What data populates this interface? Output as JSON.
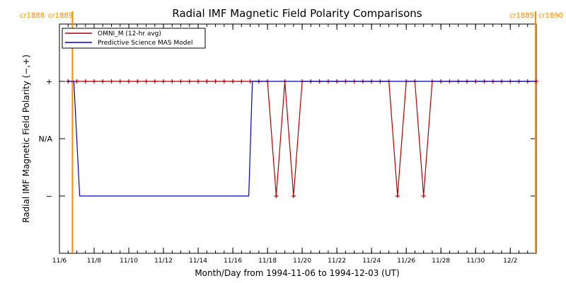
{
  "chart_data": {
    "type": "line",
    "title": "Radial IMF Magnetic Field Polarity Comparisons",
    "xlabel": "Month/Day from 1994-11-06 to 1994-12-03 (UT)",
    "ylabel": "Radial IMF Magnetic Field Polarity (−,+)",
    "x_start": "1994-11-06T00:00",
    "x_end": "1994-12-03T12:00",
    "x_ticks": [
      {
        "date": "1994-11-06",
        "label": "11/6"
      },
      {
        "date": "1994-11-08",
        "label": "11/8"
      },
      {
        "date": "1994-11-10",
        "label": "11/10"
      },
      {
        "date": "1994-11-12",
        "label": "11/12"
      },
      {
        "date": "1994-11-14",
        "label": "11/14"
      },
      {
        "date": "1994-11-16",
        "label": "11/16"
      },
      {
        "date": "1994-11-18",
        "label": "11/18"
      },
      {
        "date": "1994-11-20",
        "label": "11/20"
      },
      {
        "date": "1994-11-22",
        "label": "11/22"
      },
      {
        "date": "1994-11-24",
        "label": "11/24"
      },
      {
        "date": "1994-11-26",
        "label": "11/26"
      },
      {
        "date": "1994-11-28",
        "label": "11/28"
      },
      {
        "date": "1994-11-30",
        "label": "11/30"
      },
      {
        "date": "1994-12-02",
        "label": "12/2"
      }
    ],
    "ylim": [
      -2,
      2
    ],
    "y_ticks": [
      {
        "value": 1,
        "label": "+"
      },
      {
        "value": 0,
        "label": "N/A"
      },
      {
        "value": -1,
        "label": "−"
      }
    ],
    "carrington_markers": [
      {
        "date": "1994-11-06T18:00",
        "labels": [
          "cr1888",
          "cr1889"
        ],
        "color": "#ff8c00"
      },
      {
        "date": "1994-12-03T11:00",
        "labels": [
          "cr1889",
          "cr1890"
        ],
        "color": "#ff8c00"
      }
    ],
    "legend": {
      "placement": "top-left",
      "entries": [
        {
          "name": "OMNI_M (12-hr avg)",
          "color": "#b00000"
        },
        {
          "name": "Predictive Science MAS Model",
          "color": "#0000cc"
        }
      ]
    },
    "series": [
      {
        "name": "OMNI_M (12-hr avg)",
        "color": "#b00000",
        "marker": "plus",
        "points": [
          [
            "1994-11-06T12:00",
            1
          ],
          [
            "1994-11-07T00:00",
            1
          ],
          [
            "1994-11-07T12:00",
            1
          ],
          [
            "1994-11-08T00:00",
            1
          ],
          [
            "1994-11-08T12:00",
            1
          ],
          [
            "1994-11-09T00:00",
            1
          ],
          [
            "1994-11-09T12:00",
            1
          ],
          [
            "1994-11-10T00:00",
            1
          ],
          [
            "1994-11-10T12:00",
            1
          ],
          [
            "1994-11-11T00:00",
            1
          ],
          [
            "1994-11-11T12:00",
            1
          ],
          [
            "1994-11-12T00:00",
            1
          ],
          [
            "1994-11-12T12:00",
            1
          ],
          [
            "1994-11-13T00:00",
            1
          ],
          [
            "1994-11-13T12:00",
            1
          ],
          [
            "1994-11-14T00:00",
            1
          ],
          [
            "1994-11-14T12:00",
            1
          ],
          [
            "1994-11-15T00:00",
            1
          ],
          [
            "1994-11-15T12:00",
            1
          ],
          [
            "1994-11-16T00:00",
            1
          ],
          [
            "1994-11-16T12:00",
            1
          ],
          [
            "1994-11-17T00:00",
            1
          ],
          [
            "1994-11-17T12:00",
            1
          ],
          [
            "1994-11-18T00:00",
            1
          ],
          [
            "1994-11-18T12:00",
            -1
          ],
          [
            "1994-11-19T00:00",
            1
          ],
          [
            "1994-11-19T12:00",
            -1
          ],
          [
            "1994-11-20T00:00",
            1
          ],
          [
            "1994-11-20T12:00",
            1
          ],
          [
            "1994-11-21T00:00",
            1
          ],
          [
            "1994-11-21T12:00",
            1
          ],
          [
            "1994-11-22T00:00",
            1
          ],
          [
            "1994-11-22T12:00",
            1
          ],
          [
            "1994-11-23T00:00",
            1
          ],
          [
            "1994-11-23T12:00",
            1
          ],
          [
            "1994-11-24T00:00",
            1
          ],
          [
            "1994-11-24T12:00",
            1
          ],
          [
            "1994-11-25T00:00",
            1
          ],
          [
            "1994-11-25T12:00",
            -1
          ],
          [
            "1994-11-26T00:00",
            1
          ],
          [
            "1994-11-26T12:00",
            1
          ],
          [
            "1994-11-27T00:00",
            -1
          ],
          [
            "1994-11-27T12:00",
            1
          ],
          [
            "1994-11-28T00:00",
            1
          ],
          [
            "1994-11-28T12:00",
            1
          ],
          [
            "1994-11-29T00:00",
            1
          ],
          [
            "1994-11-29T12:00",
            1
          ],
          [
            "1994-11-30T00:00",
            1
          ],
          [
            "1994-11-30T12:00",
            1
          ],
          [
            "1994-12-01T00:00",
            1
          ],
          [
            "1994-12-01T12:00",
            1
          ],
          [
            "1994-12-02T00:00",
            1
          ],
          [
            "1994-12-02T12:00",
            1
          ],
          [
            "1994-12-03T00:00",
            1
          ],
          [
            "1994-12-03T12:00",
            1
          ]
        ]
      },
      {
        "name": "Predictive Science MAS Model",
        "color": "#0000cc",
        "marker": "none",
        "points": [
          [
            "1994-11-06T10:00",
            1
          ],
          [
            "1994-11-06T20:00",
            1
          ],
          [
            "1994-11-07T04:00",
            -1
          ],
          [
            "1994-11-16T22:00",
            -1
          ],
          [
            "1994-11-17T03:00",
            1
          ],
          [
            "1994-12-03T12:00",
            1
          ]
        ]
      }
    ]
  }
}
